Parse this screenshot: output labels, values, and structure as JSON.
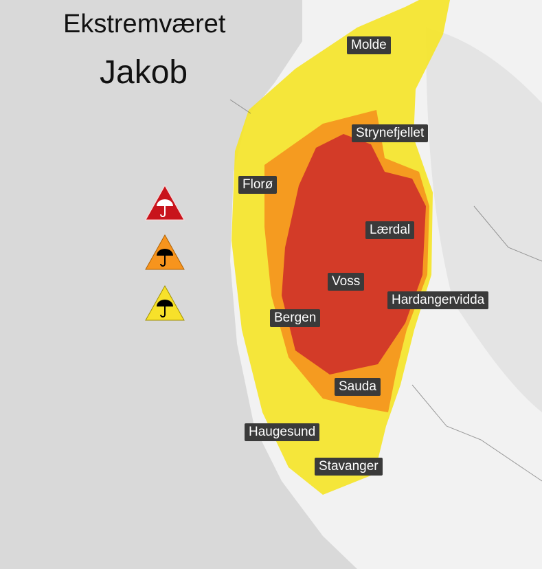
{
  "title": {
    "line1": "Ekstremværet",
    "line2": "Jakob"
  },
  "colors": {
    "red": "#cc2a2a",
    "orange": "#f5921e",
    "yellow": "#f5e52a",
    "land": "#f2f2f2",
    "sea": "#d9d9d9"
  },
  "legend": [
    {
      "level": "red",
      "icon": "umbrella-warning-icon"
    },
    {
      "level": "orange",
      "icon": "umbrella-warning-icon"
    },
    {
      "level": "yellow",
      "icon": "umbrella-warning-icon"
    }
  ],
  "places": [
    "Molde",
    "Strynefjellet",
    "Florø",
    "Lærdal",
    "Voss",
    "Hardangervidda",
    "Bergen",
    "Sauda",
    "Haugesund",
    "Stavanger"
  ]
}
